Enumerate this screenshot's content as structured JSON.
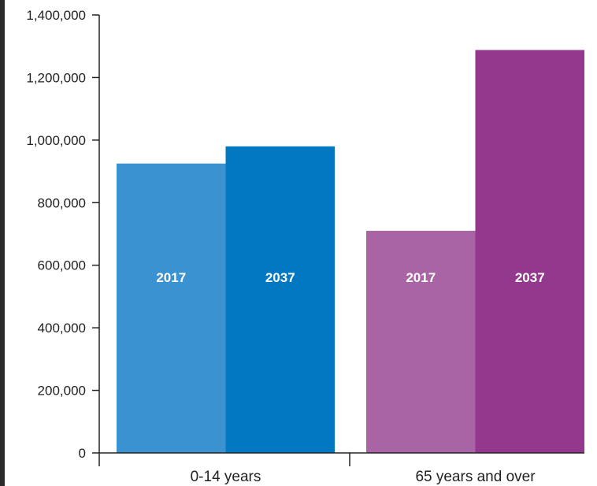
{
  "chart_data": {
    "type": "bar",
    "title": "",
    "xlabel": "",
    "ylabel": "",
    "ylim": [
      0,
      1400000
    ],
    "yticks": [
      0,
      200000,
      400000,
      600000,
      800000,
      1000000,
      1200000,
      1400000
    ],
    "ytick_labels": [
      "0",
      "200,000",
      "400,000",
      "600,000",
      "800,000",
      "1,000,000",
      "1,200,000",
      "1,400,000"
    ],
    "categories": [
      "0-14 years",
      "65 years and over"
    ],
    "groups": [
      {
        "category": "0-14 years",
        "bars": [
          {
            "label": "2017",
            "value": 925000,
            "color": "#3a93d0"
          },
          {
            "label": "2037",
            "value": 980000,
            "color": "#0178c1"
          }
        ]
      },
      {
        "category": "65 years and over",
        "bars": [
          {
            "label": "2017",
            "value": 710000,
            "color": "#a864a4"
          },
          {
            "label": "2037",
            "value": 1288000,
            "color": "#93388d"
          }
        ]
      }
    ],
    "grid": false,
    "legend": "none"
  }
}
